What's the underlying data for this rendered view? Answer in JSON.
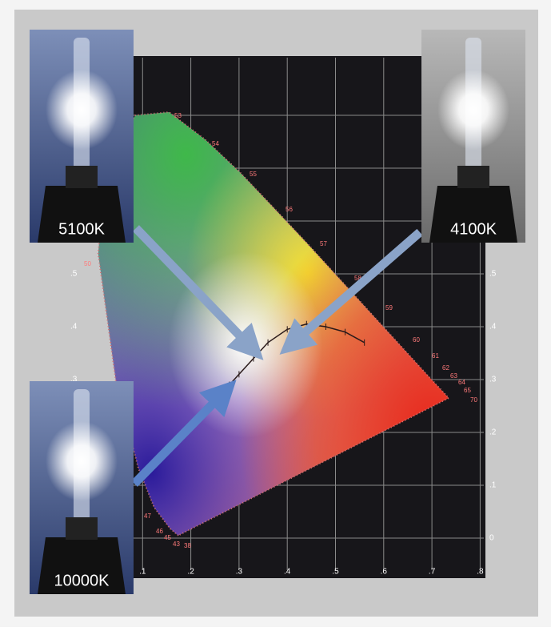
{
  "photos": [
    {
      "label": "5100K"
    },
    {
      "label": "4100K"
    },
    {
      "label": "10000K"
    }
  ],
  "x_axis": {
    "ticks": [
      ".1",
      ".2",
      ".3",
      ".4",
      ".5",
      ".6",
      ".7",
      ".8"
    ]
  },
  "y_axis": {
    "ticks": [
      "0",
      ".1",
      ".2",
      ".3",
      ".4",
      ".5"
    ]
  },
  "wavelength_labels": [
    "53",
    "54",
    "55",
    "56",
    "57",
    "58",
    "59",
    "60",
    "61",
    "62",
    "63",
    "64",
    "65",
    "70",
    "50",
    "47",
    "46",
    "45",
    "43",
    "38"
  ]
}
